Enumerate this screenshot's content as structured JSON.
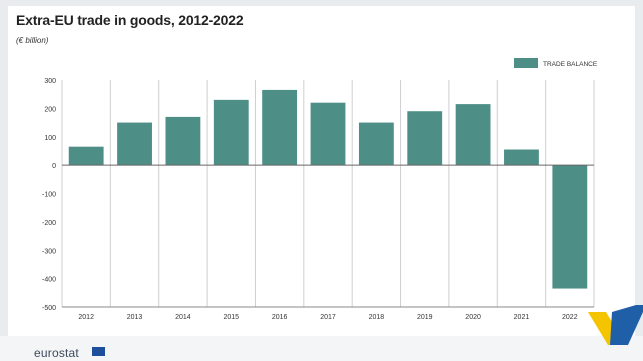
{
  "header": {
    "title": "Extra-EU trade in goods, 2012-2022",
    "unit": "(€ billion)"
  },
  "footer": {
    "logo_text": "eurostat"
  },
  "chart_data": {
    "type": "bar",
    "title": "Extra-EU trade in goods, 2012-2022",
    "ylabel": "(€ billion)",
    "xlabel": "",
    "categories": [
      "2012",
      "2013",
      "2014",
      "2015",
      "2016",
      "2017",
      "2018",
      "2019",
      "2020",
      "2021",
      "2022"
    ],
    "series": [
      {
        "name": "TRADE BALANCE",
        "values": [
          65,
          150,
          170,
          230,
          265,
          220,
          150,
          190,
          215,
          55,
          -435
        ]
      }
    ],
    "ylim": [
      -500,
      300
    ],
    "yticks": [
      300,
      200,
      100,
      0,
      -100,
      -200,
      -300,
      -400,
      -500
    ],
    "grid": "vertical category dividers",
    "legend_position": "top-right",
    "bar_color": "#4d8e86"
  },
  "colors": {
    "bar": "#4d8e86",
    "axis": "#555555",
    "grid": "#cfcfcf",
    "accent_yellow": "#f5c400",
    "accent_blue": "#1f5fa8"
  }
}
